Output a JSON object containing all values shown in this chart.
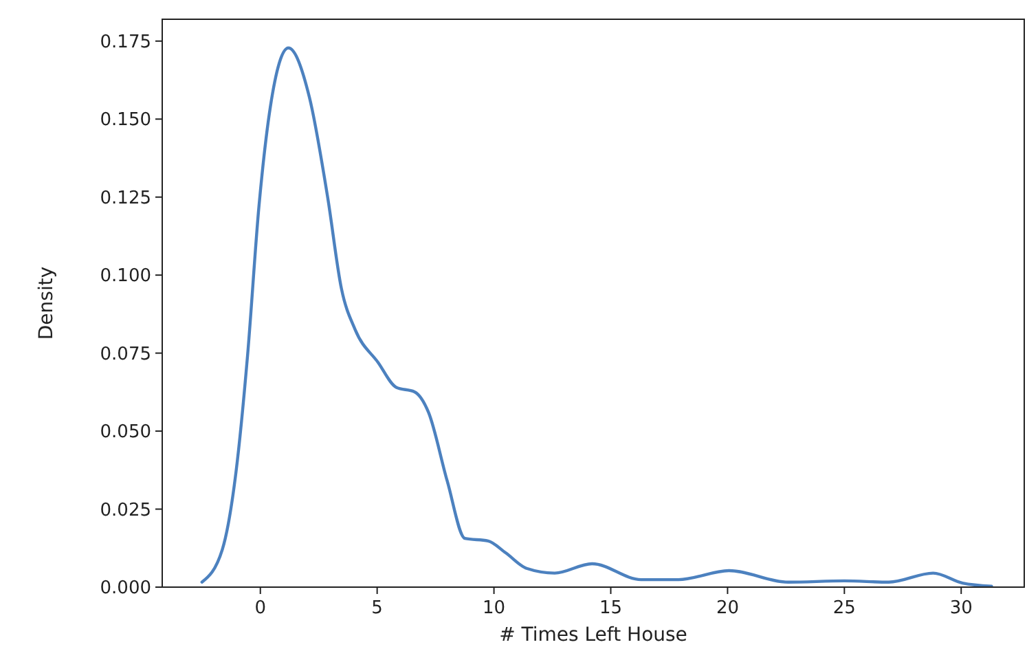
{
  "chart_data": {
    "type": "line",
    "xlabel": "# Times Left House",
    "ylabel": "Density",
    "x": [
      -2.5,
      -1.63,
      -1.04,
      -0.55,
      -0.06,
      0.43,
      1.2,
      2.1,
      2.88,
      3.47,
      4.06,
      5.04,
      5.82,
      6.6,
      7.2,
      8.0,
      8.76,
      9.75,
      10.5,
      11.4,
      12.6,
      14.2,
      16.3,
      17.9,
      20.06,
      22.6,
      25,
      26.9,
      28.8,
      30.06,
      31.3
    ],
    "series": [
      {
        "color": "#4c81bf",
        "values": [
          0.0016,
          0.012,
          0.037,
          0.074,
          0.122,
          0.154,
          0.1728,
          0.157,
          0.125,
          0.0957,
          0.0825,
          0.072,
          0.064,
          0.0626,
          0.056,
          0.034,
          0.0156,
          0.0148,
          0.011,
          0.006,
          0.0045,
          0.0075,
          0.0024,
          0.0024,
          0.0053,
          0.0016,
          0.002,
          0.0016,
          0.0045,
          0.0013,
          0.0003
        ]
      }
    ],
    "xlim": [
      -4.2,
      32.7
    ],
    "ylim": [
      0,
      0.182
    ],
    "xticks": [
      0,
      5,
      10,
      15,
      20,
      25,
      30
    ],
    "yticks": [
      {
        "value": 0,
        "label": "0.000"
      },
      {
        "value": 0.025,
        "label": "0.025"
      },
      {
        "value": 0.05,
        "label": "0.050"
      },
      {
        "value": 0.075,
        "label": "0.075"
      },
      {
        "value": 0.1,
        "label": "0.100"
      },
      {
        "value": 0.125,
        "label": "0.125"
      },
      {
        "value": 0.15,
        "label": "0.150"
      },
      {
        "value": 0.175,
        "label": "0.175"
      }
    ],
    "grid": false,
    "marker": "none",
    "line_style": "solid"
  }
}
